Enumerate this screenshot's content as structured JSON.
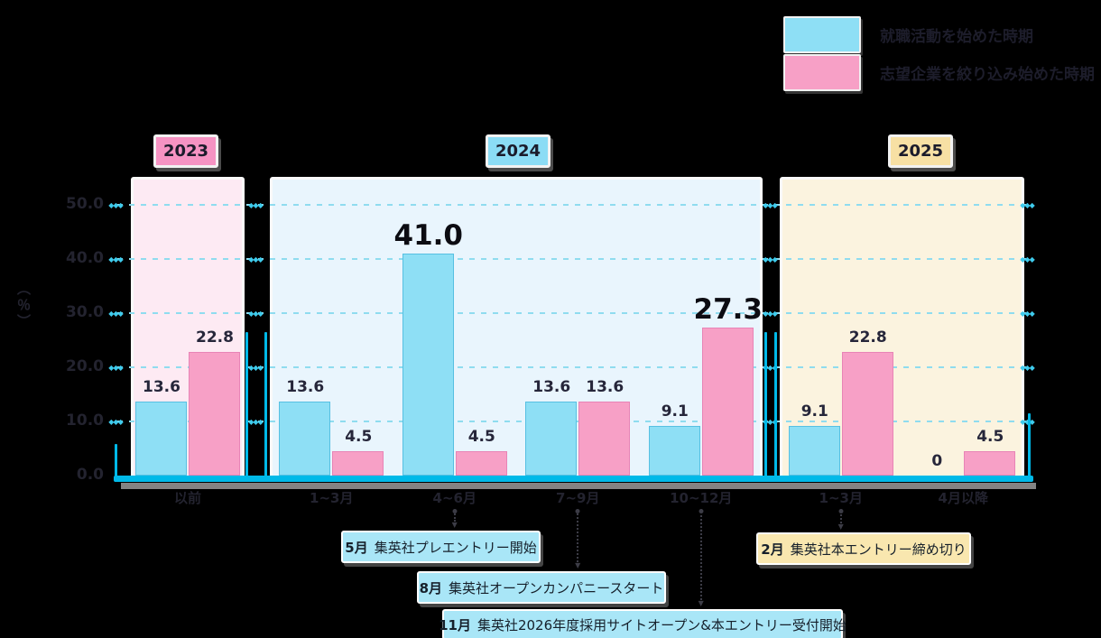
{
  "legend": {
    "items": [
      {
        "label": "就職活動を始めた時期",
        "color": "#8edff5"
      },
      {
        "label": "志望企業を絞り込み始めた時期",
        "color": "#f7a0c6"
      }
    ]
  },
  "y_axis": {
    "unit_label": "（％）",
    "ticks": [
      {
        "label": "50.0",
        "value": 50
      },
      {
        "label": "40.0",
        "value": 40
      },
      {
        "label": "30.0",
        "value": 30
      },
      {
        "label": "20.0",
        "value": 20
      },
      {
        "label": "10.0",
        "value": 10
      },
      {
        "label": "0.0",
        "value": 0
      }
    ]
  },
  "chart_data": {
    "type": "bar",
    "title": "",
    "ylabel": "（％）",
    "ylim": [
      0,
      55
    ],
    "grid": true,
    "legend_position": "top-right",
    "categories": [
      "以前",
      "1~3月",
      "4~6月",
      "7~9月",
      "10~12月",
      "1~3月",
      "4月以降"
    ],
    "series": [
      {
        "name": "就職活動を始めた時期",
        "color": "#8edff5",
        "values": [
          13.6,
          13.6,
          41.0,
          13.6,
          9.1,
          9.1,
          0
        ]
      },
      {
        "name": "志望企業を絞り込み始めた時期",
        "color": "#f7a0c6",
        "values": [
          22.8,
          4.5,
          4.5,
          13.6,
          27.3,
          22.8,
          4.5
        ]
      }
    ],
    "panels": [
      {
        "year": "2023",
        "badge_bg": "#f693c3",
        "panel_bg": "#fdeaf3",
        "groups": [
          {
            "label": "以前",
            "start": 13.6,
            "narrow": 22.8,
            "start_label": "13.6",
            "narrow_label": "22.8",
            "emphasize": ""
          }
        ]
      },
      {
        "year": "2024",
        "badge_bg": "#8bdcf5",
        "panel_bg": "#e9f5fd",
        "groups": [
          {
            "label": "1~3月",
            "start": 13.6,
            "narrow": 4.5,
            "start_label": "13.6",
            "narrow_label": "4.5",
            "emphasize": ""
          },
          {
            "label": "4~6月",
            "start": 41.0,
            "narrow": 4.5,
            "start_label": "41.0",
            "narrow_label": "4.5",
            "emphasize": "start"
          },
          {
            "label": "7~9月",
            "start": 13.6,
            "narrow": 13.6,
            "start_label": "13.6",
            "narrow_label": "13.6",
            "emphasize": ""
          },
          {
            "label": "10~12月",
            "start": 9.1,
            "narrow": 27.3,
            "start_label": "9.1",
            "narrow_label": "27.3",
            "emphasize": "narrow"
          }
        ]
      },
      {
        "year": "2025",
        "badge_bg": "#f7e0a4",
        "panel_bg": "#fbf3df",
        "groups": [
          {
            "label": "1~3月",
            "start": 9.1,
            "narrow": 22.8,
            "start_label": "9.1",
            "narrow_label": "22.8",
            "emphasize": ""
          },
          {
            "label": "4月以降",
            "start": 0,
            "narrow": 4.5,
            "start_label": "0",
            "narrow_label": "4.5",
            "emphasize": ""
          }
        ]
      }
    ]
  },
  "annotations": [
    {
      "month": "5月",
      "text": "集英社プレエントリー開始",
      "theme": "blue",
      "category_index": 2
    },
    {
      "month": "8月",
      "text": "集英社オープンカンパニースタート",
      "theme": "blue",
      "category_index": 3
    },
    {
      "month": "11月",
      "text": "集英社2026年度採用サイトオープン&本エントリー受付開始",
      "theme": "blue",
      "category_index": 4
    },
    {
      "month": "2月",
      "text": "集英社本エントリー締め切り",
      "theme": "yellow",
      "category_index": 5
    }
  ],
  "colors": {
    "bar_start": "#8edff5",
    "bar_narrow": "#f7a0c6",
    "grid": "#8fdcef",
    "axis": "#00b9e8",
    "axis_shadow": "#9a9a9a",
    "anno_blue": "#a9e6f7",
    "anno_yellow": "#f9e7af",
    "background": "#000000"
  }
}
